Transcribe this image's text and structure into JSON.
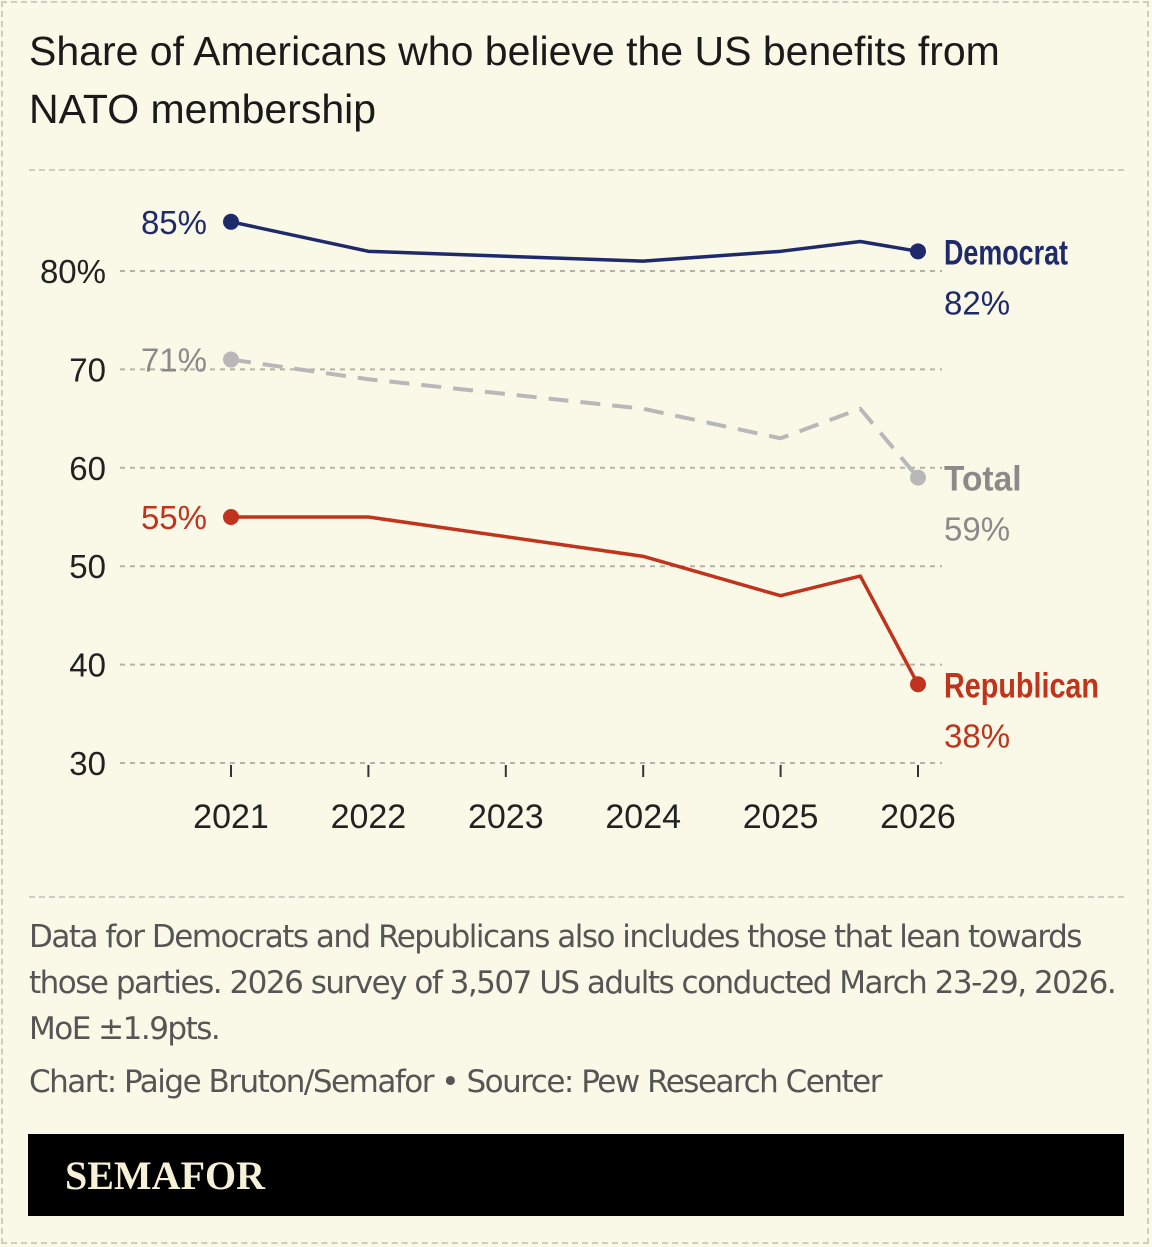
{
  "title": "Share of Americans who believe the US benefits from NATO membership",
  "chart_data": {
    "type": "line",
    "title": "Share of Americans who believe the US benefits from NATO membership",
    "xlabel": "",
    "ylabel": "",
    "ylim": [
      30,
      85
    ],
    "xlim": [
      2021,
      2026
    ],
    "x_ticks": [
      "2021",
      "2022",
      "2023",
      "2024",
      "2025",
      "2026"
    ],
    "y_ticks": [
      {
        "value": 80,
        "label": "80%"
      },
      {
        "value": 70,
        "label": "70"
      },
      {
        "value": 60,
        "label": "60"
      },
      {
        "value": 50,
        "label": "50"
      },
      {
        "value": 40,
        "label": "40"
      },
      {
        "value": 30,
        "label": "30"
      }
    ],
    "grid": true,
    "series": [
      {
        "name": "Democrat",
        "color": "#1f2a6b",
        "dashed": false,
        "x": [
          2021,
          2022,
          2024,
          2025,
          2025.58,
          2026
        ],
        "values": [
          85,
          82,
          81,
          82,
          83,
          82
        ],
        "start_label": "85%",
        "end_label": "82%"
      },
      {
        "name": "Total",
        "color": "#b8b8b8",
        "label_color": "#8a8a8a",
        "dashed": true,
        "x": [
          2021,
          2022,
          2024,
          2025,
          2025.58,
          2026
        ],
        "values": [
          71,
          69,
          66,
          63,
          66,
          59
        ],
        "start_label": "71%",
        "end_label": "59%"
      },
      {
        "name": "Republican",
        "color": "#c0341d",
        "dashed": false,
        "x": [
          2021,
          2022,
          2024,
          2025,
          2025.58,
          2026
        ],
        "values": [
          55,
          55,
          51,
          47,
          49,
          38
        ],
        "start_label": "55%",
        "end_label": "38%"
      }
    ]
  },
  "note": "Data for Democrats and Republicans also includes those that lean towards those parties. 2026 survey of 3,507 US adults conducted March 23-29, 2026. MoE ±1.9pts.",
  "credit": "Chart: Paige Bruton/Semafor • Source: Pew Research Center",
  "logo": "SEMAFOR"
}
